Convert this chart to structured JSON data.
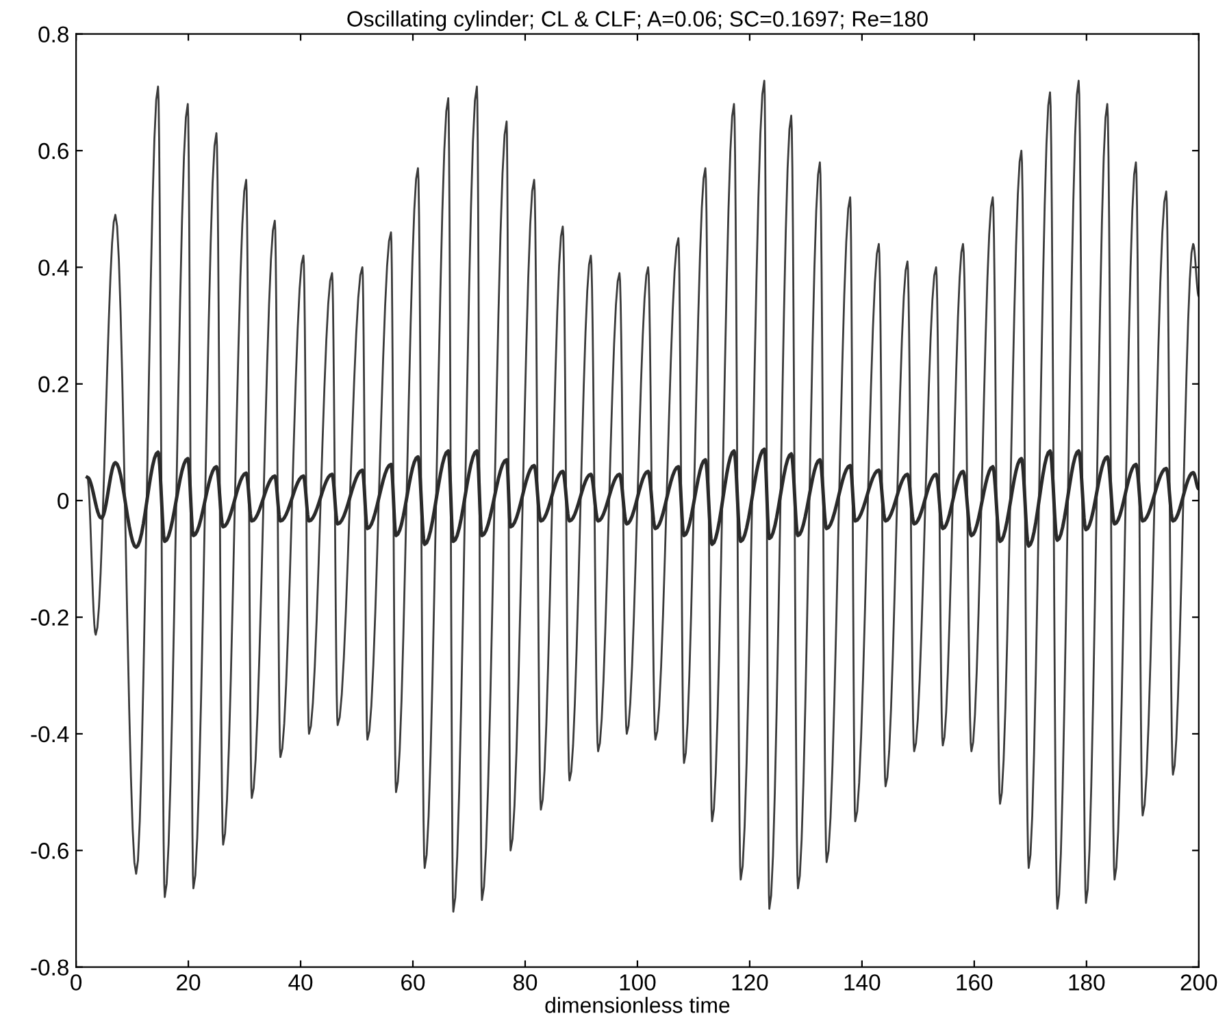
{
  "chart_data": {
    "type": "line",
    "title": "Oscillating cylinder; CL & CLF; A=0.06; SC=0.1697; Re=180",
    "xlabel": "dimensionless time",
    "xlim": [
      0,
      200
    ],
    "ylim": [
      -0.8,
      0.8
    ],
    "xticks": [
      0,
      20,
      40,
      60,
      80,
      100,
      120,
      140,
      160,
      180,
      200
    ],
    "yticks": [
      -0.8,
      -0.6,
      -0.4,
      -0.2,
      0,
      0.2,
      0.4,
      0.6,
      0.8
    ],
    "grid": false,
    "legend": false,
    "series": [
      {
        "color": "#3a3a3a",
        "line_style": "solid",
        "x": [
          2,
          3.5,
          7.0,
          10.7,
          14.6,
          15.8,
          19.9,
          20.9,
          25.0,
          26.2,
          30.3,
          31.3,
          35.4,
          36.4,
          40.5,
          41.5,
          45.6,
          46.6,
          51.0,
          51.9,
          56.1,
          57.0,
          60.9,
          62.1,
          66.3,
          67.2,
          71.4,
          72.3,
          76.7,
          77.4,
          81.6,
          82.8,
          86.7,
          87.9,
          91.7,
          93.0,
          96.8,
          98.1,
          101.9,
          103.2,
          107.3,
          108.3,
          112.1,
          113.3,
          117.2,
          118.4,
          122.6,
          123.5,
          127.4,
          128.6,
          132.5,
          133.7,
          137.9,
          138.8,
          143.0,
          144.2,
          148.1,
          149.3,
          153.2,
          154.4,
          158.0,
          159.5,
          163.3,
          164.6,
          168.4,
          169.7,
          173.5,
          174.8,
          178.6,
          179.9,
          183.7,
          185.0,
          188.8,
          190.0,
          194.2,
          195.4,
          199.0,
          200
        ],
        "values": [
          0.04,
          -0.23,
          0.49,
          -0.64,
          0.71,
          -0.68,
          0.68,
          -0.665,
          0.63,
          -0.59,
          0.55,
          -0.51,
          0.48,
          -0.44,
          0.42,
          -0.4,
          0.39,
          -0.385,
          0.4,
          -0.41,
          0.46,
          -0.5,
          0.57,
          -0.63,
          0.69,
          -0.705,
          0.71,
          -0.685,
          0.65,
          -0.6,
          0.55,
          -0.53,
          0.47,
          -0.48,
          0.42,
          -0.43,
          0.39,
          -0.4,
          0.4,
          -0.41,
          0.45,
          -0.45,
          0.57,
          -0.55,
          0.68,
          -0.65,
          0.72,
          -0.7,
          0.66,
          -0.665,
          0.58,
          -0.62,
          0.52,
          -0.55,
          0.44,
          -0.49,
          0.41,
          -0.43,
          0.4,
          -0.42,
          0.44,
          -0.43,
          0.52,
          -0.52,
          0.6,
          -0.63,
          0.7,
          -0.7,
          0.72,
          -0.69,
          0.68,
          -0.65,
          0.58,
          -0.54,
          0.53,
          -0.47,
          0.44,
          0.35
        ]
      },
      {
        "color": "#2a2a2a",
        "line_style": "solid",
        "x": [
          2,
          4.5,
          7.0,
          10.7,
          14.6,
          15.8,
          19.9,
          20.9,
          25.0,
          26.2,
          30.3,
          31.3,
          35.4,
          36.4,
          40.5,
          41.5,
          45.6,
          46.6,
          51.0,
          51.9,
          56.1,
          57.0,
          60.9,
          62.1,
          66.3,
          67.2,
          71.4,
          72.3,
          76.7,
          77.4,
          81.6,
          82.8,
          86.7,
          87.9,
          91.7,
          93.0,
          96.8,
          98.1,
          101.9,
          103.2,
          107.3,
          108.3,
          112.1,
          113.3,
          117.2,
          118.4,
          122.6,
          123.5,
          127.4,
          128.6,
          132.5,
          133.7,
          137.9,
          138.8,
          143.0,
          144.2,
          148.1,
          149.3,
          153.2,
          154.4,
          158.0,
          159.5,
          163.3,
          164.6,
          168.4,
          169.7,
          173.5,
          174.8,
          178.6,
          179.9,
          183.7,
          185.0,
          188.8,
          190.0,
          194.2,
          195.4,
          199.0,
          200
        ],
        "values": [
          0.04,
          -0.03,
          0.065,
          -0.08,
          0.083,
          -0.07,
          0.072,
          -0.06,
          0.058,
          -0.045,
          0.047,
          -0.035,
          0.042,
          -0.035,
          0.042,
          -0.035,
          0.045,
          -0.04,
          0.052,
          -0.048,
          0.062,
          -0.06,
          0.075,
          -0.075,
          0.085,
          -0.07,
          0.085,
          -0.06,
          0.07,
          -0.045,
          0.06,
          -0.035,
          0.05,
          -0.035,
          0.045,
          -0.035,
          0.045,
          -0.04,
          0.05,
          -0.048,
          0.058,
          -0.06,
          0.07,
          -0.075,
          0.085,
          -0.07,
          0.088,
          -0.065,
          0.08,
          -0.06,
          0.07,
          -0.048,
          0.06,
          -0.035,
          0.052,
          -0.035,
          0.045,
          -0.04,
          0.045,
          -0.048,
          0.05,
          -0.06,
          0.058,
          -0.07,
          0.072,
          -0.078,
          0.085,
          -0.068,
          0.085,
          -0.05,
          0.075,
          -0.04,
          0.062,
          -0.035,
          0.055,
          -0.035,
          0.048,
          0.02
        ]
      }
    ]
  }
}
